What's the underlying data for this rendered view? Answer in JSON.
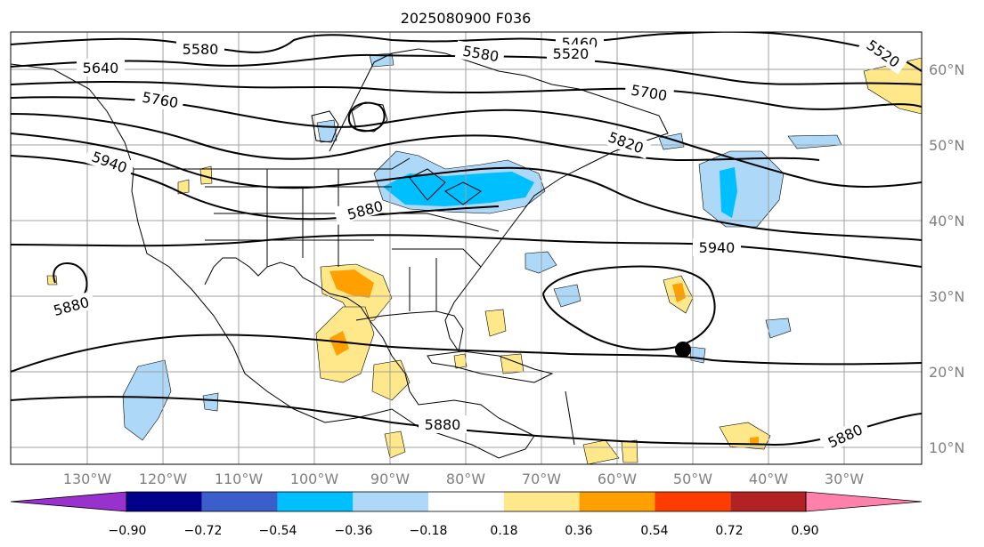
{
  "title": "2025080900 F036",
  "axes": {
    "lon_labels": [
      "130°W",
      "120°W",
      "110°W",
      "100°W",
      "90°W",
      "80°W",
      "70°W",
      "60°W",
      "50°W",
      "40°W",
      "30°W"
    ],
    "lat_labels": [
      "60°N",
      "50°N",
      "40°N",
      "30°N",
      "20°N",
      "10°N"
    ]
  },
  "contour_labels": [
    "5580",
    "5640",
    "5760",
    "5940",
    "5880",
    "5880",
    "5580",
    "5460",
    "5520",
    "5520",
    "5700",
    "5820",
    "5940",
    "5880"
  ],
  "colorbar": {
    "ticks": [
      "−0.90",
      "−0.72",
      "−0.54",
      "−0.36",
      "−0.18",
      "0.18",
      "0.36",
      "0.54",
      "0.72",
      "0.90"
    ],
    "colors": [
      "#9932cc",
      "#00008b",
      "#3a5fcd",
      "#00bfff",
      "#add8f7",
      "#ffffff",
      "#ffe88a",
      "#ff9f00",
      "#ff3c00",
      "#b22222",
      "#ff80ab"
    ]
  },
  "colors": {
    "land_outline": "#000000",
    "contour": "#000000",
    "grid": "#a0a0a0",
    "marker": "#000000"
  }
}
